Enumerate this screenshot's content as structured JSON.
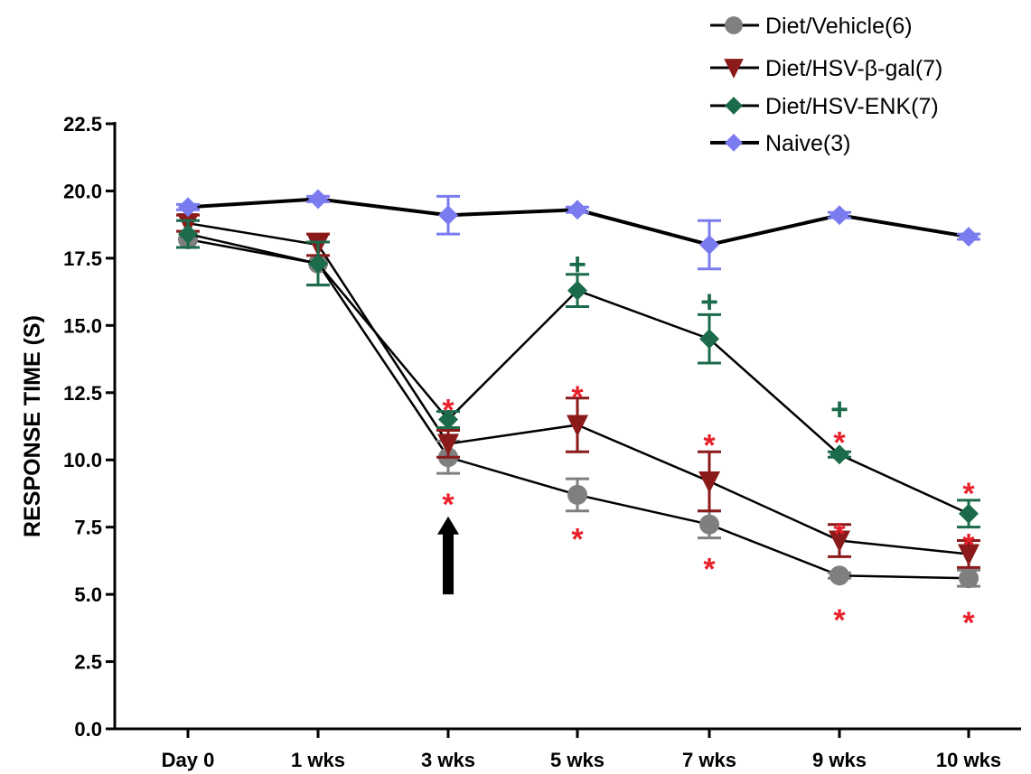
{
  "chart_data": {
    "type": "line",
    "title": "",
    "xlabel": "",
    "ylabel": "RESPONSE TIME (S)",
    "ylim": [
      0,
      22.5
    ],
    "yticks": [
      "0.0",
      "2.5",
      "5.0",
      "7.5",
      "10.0",
      "12.5",
      "15.0",
      "17.5",
      "20.0",
      "22.5"
    ],
    "categories": [
      "Day 0",
      "1 wks",
      "3 wks",
      "5 wks",
      "7 wks",
      "9 wks",
      "10 wks"
    ],
    "grid": false,
    "legend_position": "top-right",
    "series": [
      {
        "name": "Diet/Vehicle(6)",
        "color": "#7f7f7f",
        "marker": "circle",
        "values": [
          18.2,
          17.3,
          10.1,
          8.7,
          7.6,
          5.7,
          5.6
        ],
        "errors": [
          0.3,
          0.8,
          0.6,
          0.6,
          0.5,
          0.1,
          0.3
        ]
      },
      {
        "name": "Diet/HSV-β-gal(7)",
        "color": "#8b1a1a",
        "marker": "triangle-down",
        "values": [
          18.8,
          18.0,
          10.6,
          11.3,
          9.2,
          7.0,
          6.5
        ],
        "errors": [
          0.3,
          0.4,
          0.5,
          1.0,
          1.1,
          0.6,
          0.5
        ]
      },
      {
        "name": "Diet/HSV-ENK(7)",
        "color": "#1b6b4a",
        "marker": "diamond",
        "values": [
          18.4,
          17.3,
          11.5,
          16.3,
          14.5,
          10.2,
          8.0
        ],
        "errors": [
          0.5,
          0.8,
          0.3,
          0.6,
          0.9,
          0.1,
          0.5
        ]
      },
      {
        "name": "Naive(3)",
        "color": "#7b7bf0",
        "marker": "diamond",
        "values": [
          19.4,
          19.7,
          19.1,
          19.3,
          18.0,
          19.1,
          18.3
        ],
        "errors": [
          0.1,
          0.1,
          0.7,
          0.1,
          0.9,
          0.1,
          0.1
        ]
      }
    ],
    "annotations": [
      {
        "text": "*",
        "color": "#e8202a",
        "x": "3 wks",
        "y": 12.2
      },
      {
        "text": "*",
        "color": "#e8202a",
        "x": "3 wks",
        "y": 8.7
      },
      {
        "text": "*",
        "color": "#e8202a",
        "x": "5 wks",
        "y": 12.7
      },
      {
        "text": "*",
        "color": "#e8202a",
        "x": "5 wks",
        "y": 7.4
      },
      {
        "text": "*",
        "color": "#e8202a",
        "x": "7 wks",
        "y": 10.9
      },
      {
        "text": "*",
        "color": "#e8202a",
        "x": "7 wks",
        "y": 6.3
      },
      {
        "text": "*",
        "color": "#e8202a",
        "x": "9 wks",
        "y": 11.0
      },
      {
        "text": "*",
        "color": "#e8202a",
        "x": "9 wks",
        "y": 7.6
      },
      {
        "text": "*",
        "color": "#e8202a",
        "x": "9 wks",
        "y": 4.4
      },
      {
        "text": "*",
        "color": "#e8202a",
        "x": "10 wks",
        "y": 9.1
      },
      {
        "text": "*",
        "color": "#e8202a",
        "x": "10 wks",
        "y": 7.2
      },
      {
        "text": "*",
        "color": "#e8202a",
        "x": "10 wks",
        "y": 4.3
      },
      {
        "text": "+",
        "color": "#1b6b4a",
        "x": "5 wks",
        "y": 17.3
      },
      {
        "text": "+",
        "color": "#1b6b4a",
        "x": "7 wks",
        "y": 15.9
      },
      {
        "text": "+",
        "color": "#1b6b4a",
        "x": "9 wks",
        "y": 11.9
      }
    ],
    "arrow": {
      "x": "3 wks",
      "from": 5.0,
      "to": 7.9,
      "color": "#000000"
    }
  }
}
